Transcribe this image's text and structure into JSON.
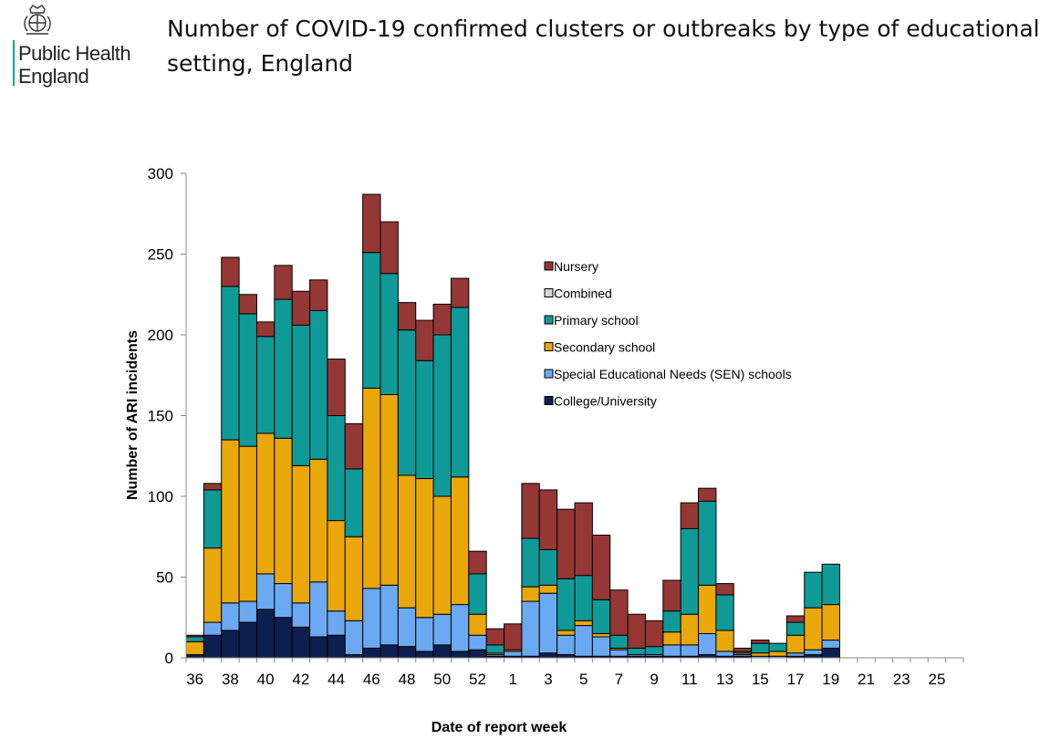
{
  "header": {
    "org_line1": "Public Health",
    "org_line2": "England",
    "title_line1": "Number of COVID-19 confirmed clusters or outbreaks by type of educational",
    "title_line2": "setting, England"
  },
  "chart_data": {
    "type": "bar",
    "stacked": true,
    "title": "Number of COVID-19 confirmed clusters or outbreaks by type of educational setting, England",
    "xlabel": "Date of report week",
    "ylabel": "Number of ARI incidents",
    "ylim": [
      0,
      300
    ],
    "yticks": [
      0,
      50,
      100,
      150,
      200,
      250,
      300
    ],
    "categories": [
      "36",
      "37",
      "38",
      "39",
      "40",
      "41",
      "42",
      "43",
      "44",
      "45",
      "46",
      "47",
      "48",
      "49",
      "50",
      "51",
      "52",
      "53",
      "1",
      "2",
      "3",
      "4",
      "5",
      "6",
      "7",
      "8",
      "9",
      "10",
      "11",
      "12",
      "13",
      "14",
      "15",
      "16",
      "17",
      "18",
      "19",
      "20",
      "21",
      "22",
      "23",
      "24",
      "25",
      "26"
    ],
    "tick_labels_shown": [
      "36",
      "38",
      "40",
      "42",
      "44",
      "46",
      "48",
      "50",
      "52",
      "1",
      "3",
      "5",
      "7",
      "9",
      "11",
      "13",
      "15",
      "17",
      "19",
      "21",
      "23",
      "25"
    ],
    "legend_position": "right-center",
    "series": [
      {
        "name": "College/University",
        "color": "#0d1f4f",
        "values": [
          2,
          14,
          17,
          22,
          30,
          25,
          19,
          13,
          14,
          2,
          6,
          8,
          7,
          4,
          8,
          4,
          5,
          1,
          1,
          1,
          3,
          2,
          1,
          1,
          1,
          1,
          1,
          1,
          1,
          2,
          1,
          1,
          0,
          0,
          1,
          2,
          6,
          0,
          0,
          0,
          0,
          0,
          0,
          0
        ]
      },
      {
        "name": "Special Educational Needs (SEN) schools",
        "color": "#6baaf2",
        "values": [
          0,
          8,
          17,
          13,
          22,
          21,
          15,
          34,
          15,
          21,
          37,
          37,
          24,
          21,
          19,
          29,
          9,
          1,
          3,
          34,
          37,
          12,
          19,
          12,
          4,
          1,
          1,
          7,
          7,
          13,
          3,
          1,
          1,
          1,
          2,
          3,
          5,
          0,
          0,
          0,
          0,
          0,
          0,
          0
        ]
      },
      {
        "name": "Secondary school",
        "color": "#e9a70a",
        "values": [
          8,
          46,
          101,
          96,
          87,
          90,
          85,
          76,
          56,
          52,
          124,
          118,
          82,
          86,
          73,
          79,
          13,
          1,
          1,
          9,
          5,
          3,
          3,
          2,
          1,
          0,
          0,
          8,
          19,
          30,
          13,
          1,
          2,
          3,
          11,
          26,
          22,
          0,
          0,
          0,
          0,
          0,
          0,
          0
        ]
      },
      {
        "name": "Combined",
        "color": "#d4d4d4",
        "values": [
          0,
          0,
          0,
          0,
          0,
          0,
          0,
          0,
          0,
          0,
          0,
          0,
          0,
          0,
          0,
          0,
          0,
          0,
          0,
          0,
          0,
          0,
          0,
          0,
          0,
          0,
          0,
          0,
          0,
          0,
          0,
          0,
          0,
          0,
          0,
          0,
          0,
          0,
          0,
          0,
          0,
          0,
          0,
          0
        ]
      },
      {
        "name": "Primary school",
        "color": "#0f9a97",
        "values": [
          3,
          36,
          95,
          82,
          60,
          86,
          87,
          92,
          65,
          42,
          84,
          75,
          90,
          73,
          100,
          105,
          25,
          5,
          0,
          30,
          22,
          32,
          28,
          21,
          8,
          4,
          5,
          13,
          53,
          52,
          22,
          1,
          6,
          5,
          8,
          22,
          25,
          0,
          0,
          0,
          0,
          0,
          0,
          0
        ]
      },
      {
        "name": "Nursery",
        "color": "#953735",
        "values": [
          1,
          4,
          18,
          12,
          9,
          21,
          21,
          19,
          35,
          28,
          36,
          32,
          17,
          25,
          19,
          18,
          14,
          10,
          16,
          34,
          37,
          43,
          45,
          40,
          28,
          21,
          16,
          19,
          16,
          8,
          7,
          2,
          2,
          0,
          4,
          0,
          0,
          0,
          0,
          0,
          0,
          0,
          0,
          0
        ]
      }
    ],
    "legend_order": [
      "Nursery",
      "Combined",
      "Primary school",
      "Secondary school",
      "Special Educational Needs (SEN) schools",
      "College/University"
    ],
    "grid": false
  }
}
